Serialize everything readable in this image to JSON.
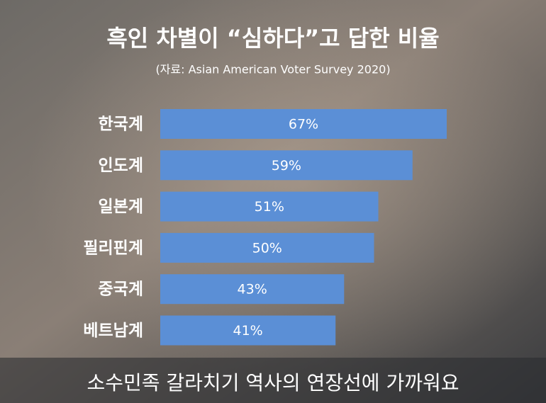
{
  "chart_data": {
    "type": "bar",
    "title": "흑인 차별이 “심하다”고 답한 비율",
    "subtitle": "(자료: Asian American Voter Survey 2020)",
    "caption": "소수민족 갈라치기 역사의 연장선에 가까워요",
    "categories": [
      "한국계",
      "인도계",
      "일본계",
      "필리핀계",
      "중국계",
      "베트남계"
    ],
    "values": [
      67,
      59,
      51,
      50,
      43,
      41
    ],
    "value_labels": [
      "67%",
      "59%",
      "51%",
      "50%",
      "43%",
      "41%"
    ],
    "color": "#5b8fd6"
  }
}
